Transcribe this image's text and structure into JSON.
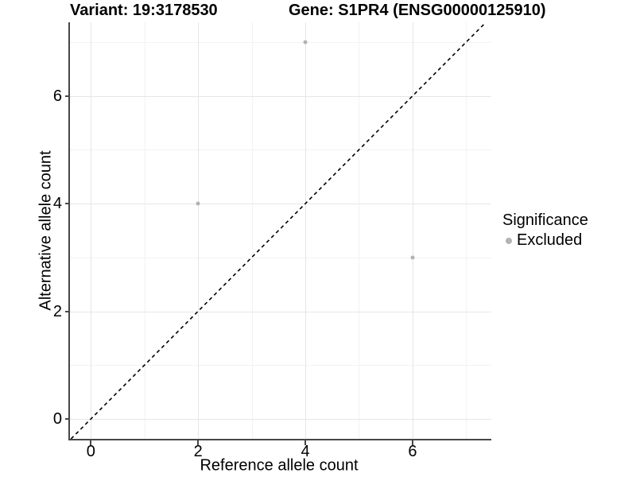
{
  "chart_data": {
    "type": "scatter",
    "titles": {
      "left": "Variant: 19:3178530",
      "right": "Gene: S1PR4 (ENSG00000125910)"
    },
    "xlabel": "Reference allele count",
    "ylabel": "Alternative allele count",
    "xlim": [
      -0.39,
      7.47
    ],
    "ylim": [
      -0.37,
      7.37
    ],
    "x_ticks": [
      0,
      2,
      4,
      6
    ],
    "x_tick_labels": [
      "0",
      "2",
      "4",
      "6"
    ],
    "y_ticks": [
      0,
      2,
      4,
      6
    ],
    "y_tick_labels": [
      "0",
      "2",
      "4",
      "6"
    ],
    "x_minor_gridlines": [
      1,
      3,
      5,
      7
    ],
    "y_minor_gridlines": [
      1,
      3,
      5,
      7
    ],
    "grid": "on",
    "series": [
      {
        "name": "Excluded",
        "color": "#b3b3b3",
        "points": [
          [
            2,
            4
          ],
          [
            4,
            7
          ],
          [
            6,
            3
          ]
        ]
      }
    ],
    "reference_line": {
      "kind": "identity",
      "style": "dashed",
      "color": "#000000"
    },
    "legend": {
      "title": "Significance",
      "position": "right",
      "items": [
        {
          "label": "Excluded",
          "color": "#b3b3b3"
        }
      ]
    },
    "colors": {
      "axis": "#474747",
      "grid_major": "#e6e6e6",
      "grid_minor": "#f2f2f2",
      "background": "#ffffff",
      "text": "#000000"
    }
  }
}
